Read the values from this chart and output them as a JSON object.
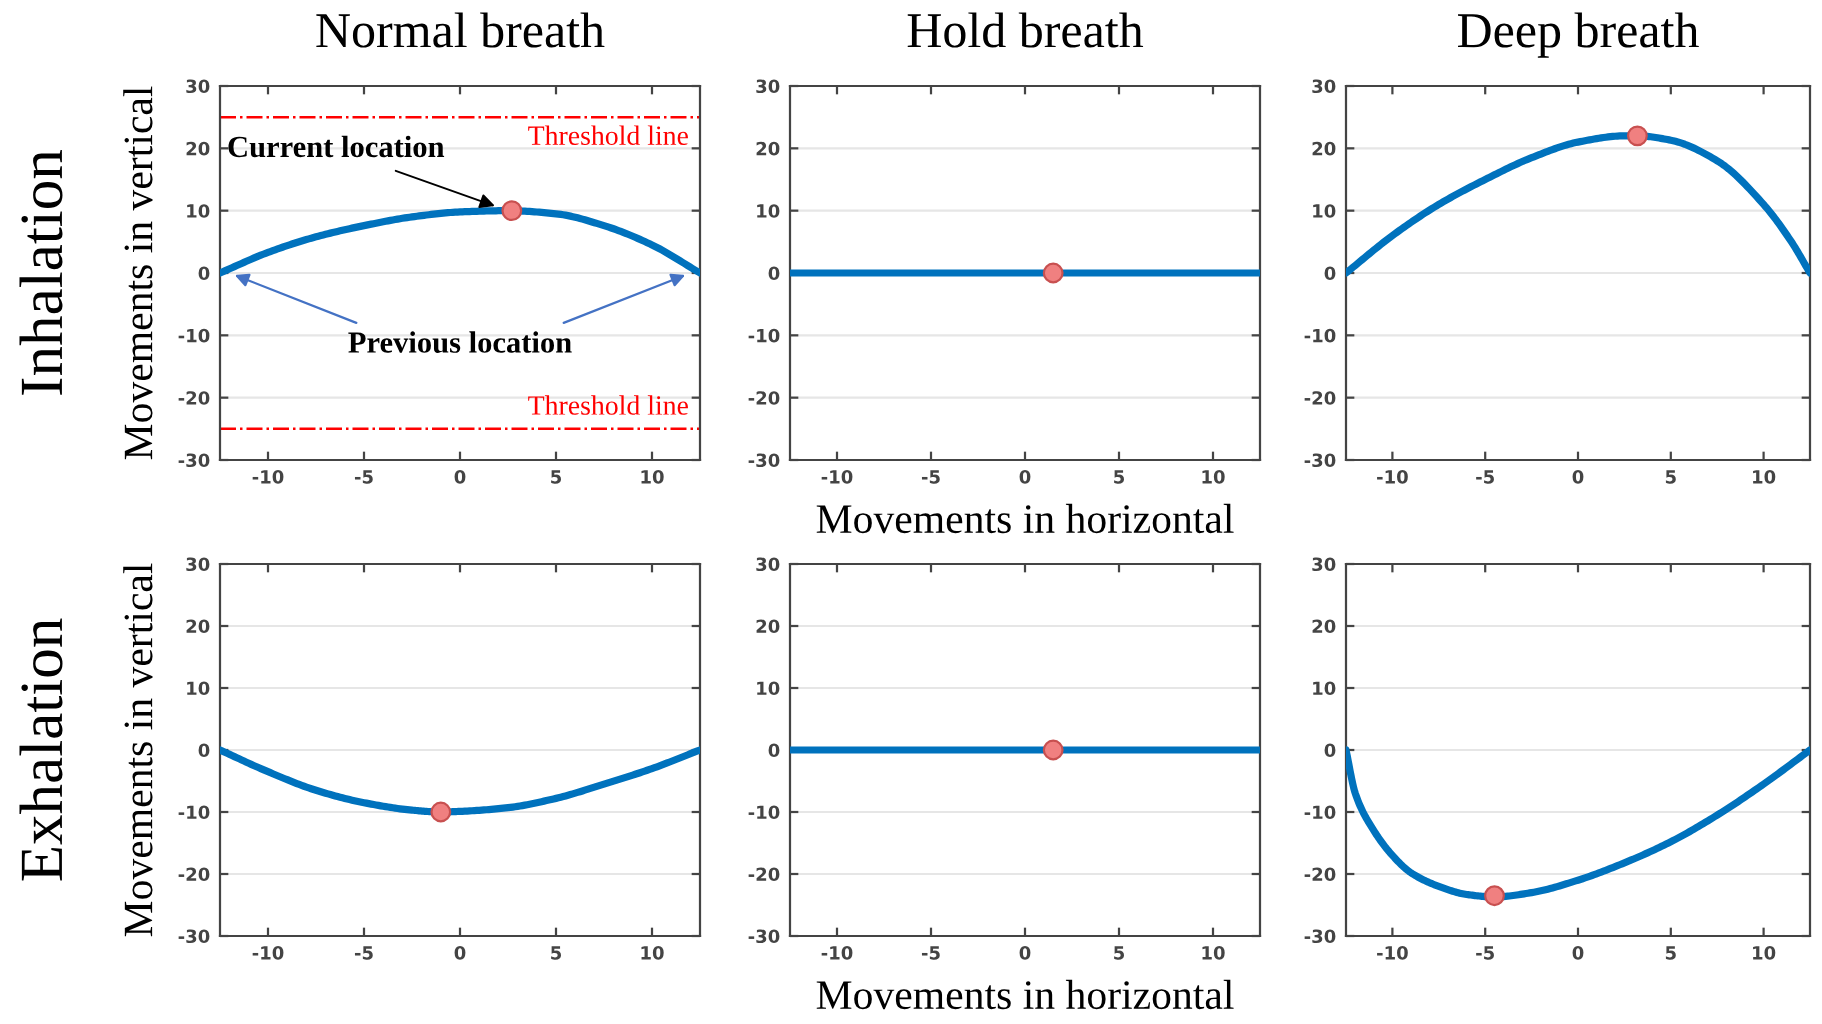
{
  "chart_data": [
    {
      "type": "line",
      "title": "Normal breath",
      "ylabel": "Movements in vertical",
      "xlim": [
        -12.5,
        12.5
      ],
      "ylim": [
        -30,
        30
      ],
      "xticks": [
        -10,
        -5,
        0,
        5,
        10
      ],
      "yticks": [
        -30,
        -20,
        -10,
        0,
        10,
        20,
        30
      ],
      "grid": "y",
      "series": [
        {
          "type": "line",
          "color": "#0072bd",
          "x": [
            -12.5,
            -10,
            -7.5,
            -5,
            -2.5,
            0,
            2.5,
            5,
            7.5,
            10,
            12.5
          ],
          "values": [
            0,
            3.3,
            5.8,
            7.6,
            9.0,
            9.8,
            10,
            9.5,
            7.6,
            4.5,
            0
          ]
        },
        {
          "type": "scatter",
          "color": "#f08080",
          "x": [
            2.7
          ],
          "values": [
            10
          ]
        }
      ],
      "ref_lines": [
        {
          "axis": "y",
          "value": 25,
          "label": "Threshold line",
          "color": "#ff0000",
          "line_style": "dashdot"
        },
        {
          "axis": "y",
          "value": -25,
          "label": "Threshold line",
          "color": "#ff0000",
          "line_style": "dashdot"
        }
      ],
      "annotations": [
        "Inhalation",
        {
          "text": "Current location",
          "x": 2.5,
          "y": 10
        },
        {
          "text": "Previous location",
          "x": -12,
          "y": 0
        }
      ]
    },
    {
      "type": "line",
      "xlabel": "Movements in horizontal",
      "title": "Hold breath",
      "xlim": [
        -12.5,
        12.5
      ],
      "ylim": [
        -30,
        30
      ],
      "xticks": [
        -10,
        -5,
        0,
        5,
        10
      ],
      "yticks": [
        -30,
        -20,
        -10,
        0,
        10,
        20,
        30
      ],
      "grid": "y",
      "series": [
        {
          "type": "line",
          "color": "#0072bd",
          "x": [
            -12.5,
            12.5
          ],
          "values": [
            0,
            0
          ]
        },
        {
          "type": "scatter",
          "color": "#f08080",
          "x": [
            1.5
          ],
          "values": [
            0
          ]
        }
      ]
    },
    {
      "type": "line",
      "title": "Deep breath",
      "xlim": [
        -12.5,
        12.5
      ],
      "ylim": [
        -30,
        30
      ],
      "xticks": [
        -10,
        -5,
        0,
        5,
        10
      ],
      "yticks": [
        -30,
        -20,
        -10,
        0,
        10,
        20,
        30
      ],
      "grid": "y",
      "series": [
        {
          "type": "line",
          "color": "#0072bd",
          "x": [
            -12.5,
            -10,
            -7.5,
            -5,
            -2.5,
            0,
            2.5,
            3.2,
            5,
            7.5,
            10,
            11.5,
            12.5
          ],
          "values": [
            0,
            6,
            11,
            15,
            18.5,
            21,
            22,
            22,
            21.3,
            18,
            11,
            5,
            0
          ]
        },
        {
          "type": "scatter",
          "color": "#f08080",
          "x": [
            3.2
          ],
          "values": [
            22
          ]
        }
      ]
    },
    {
      "type": "line",
      "ylabel": "Movements in vertical",
      "xlim": [
        -12.5,
        12.5
      ],
      "ylim": [
        -30,
        30
      ],
      "xticks": [
        -10,
        -5,
        0,
        5,
        10
      ],
      "yticks": [
        -30,
        -20,
        -10,
        0,
        10,
        20,
        30
      ],
      "grid": "y",
      "series": [
        {
          "type": "line",
          "color": "#0072bd",
          "x": [
            -12.5,
            -10,
            -7.5,
            -5,
            -2.5,
            -1,
            0,
            2.5,
            5,
            7.5,
            10,
            12.5
          ],
          "values": [
            0,
            -3.5,
            -6.5,
            -8.5,
            -9.7,
            -10,
            -9.9,
            -9.3,
            -7.8,
            -5.5,
            -3,
            0
          ]
        },
        {
          "type": "scatter",
          "color": "#f08080",
          "x": [
            -1
          ],
          "values": [
            -10
          ]
        }
      ],
      "annotations": [
        "Exhalation"
      ]
    },
    {
      "type": "line",
      "xlabel": "Movements in horizontal",
      "xlim": [
        -12.5,
        12.5
      ],
      "ylim": [
        -30,
        30
      ],
      "xticks": [
        -10,
        -5,
        0,
        5,
        10
      ],
      "yticks": [
        -30,
        -20,
        -10,
        0,
        10,
        20,
        30
      ],
      "grid": "y",
      "series": [
        {
          "type": "line",
          "color": "#0072bd",
          "x": [
            -12.5,
            12.5
          ],
          "values": [
            0,
            0
          ]
        },
        {
          "type": "scatter",
          "color": "#f08080",
          "x": [
            1.5
          ],
          "values": [
            0
          ]
        }
      ]
    },
    {
      "type": "line",
      "xlim": [
        -12.5,
        12.5
      ],
      "ylim": [
        -30,
        30
      ],
      "xticks": [
        -10,
        -5,
        0,
        5,
        10
      ],
      "yticks": [
        -30,
        -20,
        -10,
        0,
        10,
        20,
        30
      ],
      "grid": "y",
      "series": [
        {
          "type": "line",
          "color": "#0072bd",
          "x": [
            -12.5,
            -12,
            -11,
            -10,
            -9,
            -7.5,
            -6,
            -4.5,
            -2.5,
            0,
            2.5,
            5,
            7.5,
            10,
            12.5
          ],
          "values": [
            0,
            -7,
            -13,
            -17,
            -19.8,
            -22,
            -23.3,
            -23.7,
            -23,
            -21,
            -18.2,
            -14.8,
            -10.5,
            -5.5,
            0
          ]
        },
        {
          "type": "scatter",
          "color": "#f08080",
          "x": [
            -4.5
          ],
          "values": [
            -23.5
          ]
        }
      ]
    }
  ]
}
